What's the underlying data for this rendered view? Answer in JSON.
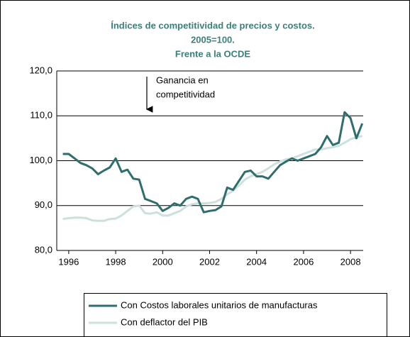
{
  "chart_data": {
    "type": "line",
    "title": [
      "Índices de competitividad de precios y costos.",
      "2005=100.",
      "Frente a la OCDE"
    ],
    "annotation": [
      "Ganancia en",
      "competitividad"
    ],
    "x": [
      1995.75,
      1996.0,
      1996.25,
      1996.5,
      1996.75,
      1997.0,
      1997.25,
      1997.5,
      1997.75,
      1998.0,
      1998.25,
      1998.5,
      1998.75,
      1999.0,
      1999.25,
      1999.5,
      1999.75,
      2000.0,
      2000.25,
      2000.5,
      2000.75,
      2001.0,
      2001.25,
      2001.5,
      2001.75,
      2002.0,
      2002.25,
      2002.5,
      2002.75,
      2003.0,
      2003.25,
      2003.5,
      2003.75,
      2004.0,
      2004.25,
      2004.5,
      2004.75,
      2005.0,
      2005.25,
      2005.5,
      2005.75,
      2006.0,
      2006.25,
      2006.5,
      2006.75,
      2007.0,
      2007.25,
      2007.5,
      2007.75,
      2008.0,
      2008.25,
      2008.5
    ],
    "series": [
      {
        "name": "Con Costos laborales unitarios de manufacturas",
        "color": "#2e6e6c",
        "values": [
          101.5,
          101.5,
          100.5,
          99.5,
          99,
          98.3,
          97,
          97.8,
          98.5,
          100.5,
          97.5,
          98,
          96,
          95.8,
          91.5,
          91,
          90.5,
          88.8,
          89.5,
          90.5,
          90,
          91.5,
          92,
          91.5,
          88.5,
          88.8,
          89,
          89.8,
          94,
          93.5,
          95.5,
          97.5,
          97.8,
          96.5,
          96.5,
          96,
          97.5,
          99,
          99.8,
          100.5,
          100,
          100.5,
          101,
          101.5,
          103,
          105.5,
          103.5,
          104,
          110.8,
          109.5,
          105,
          108.3
        ]
      },
      {
        "name": "Con deflactor del PIB",
        "color": "#cce0de",
        "values": [
          87,
          87.2,
          87.3,
          87.3,
          87.2,
          86.7,
          86.6,
          86.6,
          87,
          87.1,
          87.8,
          88.8,
          89.8,
          90,
          88.3,
          88.2,
          88.5,
          87.8,
          87.8,
          88.3,
          88.8,
          89.8,
          90.3,
          90.5,
          90.5,
          90.6,
          90.8,
          91.5,
          92.5,
          93.3,
          94.5,
          95.8,
          96.5,
          97,
          97.5,
          98.3,
          99.2,
          99.8,
          100.3,
          100.5,
          101,
          101.5,
          102,
          102.5,
          102.5,
          102.8,
          103,
          103.3,
          104,
          104.8,
          105.2,
          105.5
        ]
      }
    ],
    "xlim": [
      1995.49,
      2008.54
    ],
    "xticks": [
      1996,
      1998,
      2000,
      2002,
      2004,
      2006,
      2008
    ],
    "ylim": [
      80,
      120
    ],
    "yticks": [
      {
        "value": 80,
        "label": "80,0"
      },
      {
        "value": 90,
        "label": "90,0"
      },
      {
        "value": 100,
        "label": "100,0"
      },
      {
        "value": 110,
        "label": "110,0"
      },
      {
        "value": 120,
        "label": "120,0"
      }
    ],
    "grid": true
  }
}
